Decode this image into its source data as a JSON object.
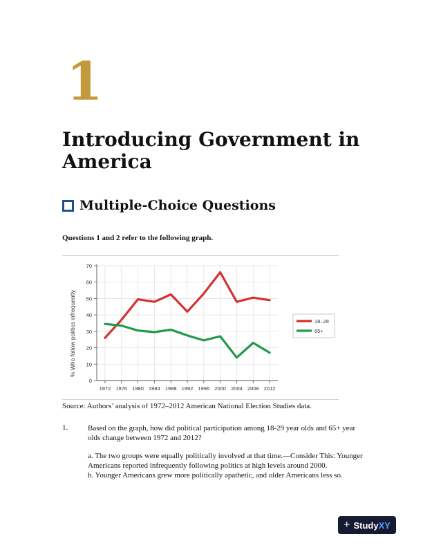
{
  "chapter": {
    "number": "1",
    "title": "Introducing Government in America"
  },
  "section": {
    "title": "Multiple-Choice Questions",
    "icon": "square-bullet-icon",
    "icon_color": "#1e4f8f"
  },
  "intro": "Questions 1 and 2 refer to the following graph.",
  "chart_data": {
    "type": "line",
    "ylabel": "% Who follow politics infrequently",
    "xlabel": "",
    "ylim": [
      0,
      70
    ],
    "yticks": [
      "0",
      "10",
      "20",
      "30",
      "40",
      "50",
      "60",
      "70"
    ],
    "categories": [
      "1972",
      "1976",
      "1980",
      "1984",
      "1988",
      "1992",
      "1996",
      "2000",
      "2004",
      "2008",
      "2012"
    ],
    "grid": true,
    "legend_position": "right",
    "series": [
      {
        "name": "18–29",
        "color": "#d62f2f",
        "values": [
          26,
          37,
          49.5,
          48,
          52.5,
          42,
          53,
          66,
          48,
          50.5,
          49
        ]
      },
      {
        "name": "65+",
        "color": "#1f9a4a",
        "values": [
          34.5,
          33.5,
          30.5,
          29.5,
          31,
          27.5,
          24.5,
          27,
          14,
          23,
          17
        ]
      }
    ]
  },
  "source": "Source: Authors’ analysis of 1972–2012 American National Election Studies data.",
  "question": {
    "number": "1.",
    "text": "Based on the graph, how did political participation among 18-29 year olds and 65+ year olds change between 1972 and 2012?",
    "choices": [
      "a. The two groups were equally politically involved at that time.—Consider This: Younger Americans reported infrequently following politics at high levels around 2000.",
      "b. Younger Americans grew more politically apathetic, and older Americans less so."
    ]
  },
  "badge": {
    "text_white": "Study",
    "text_blue": "XY",
    "icon": "plus-icon"
  }
}
